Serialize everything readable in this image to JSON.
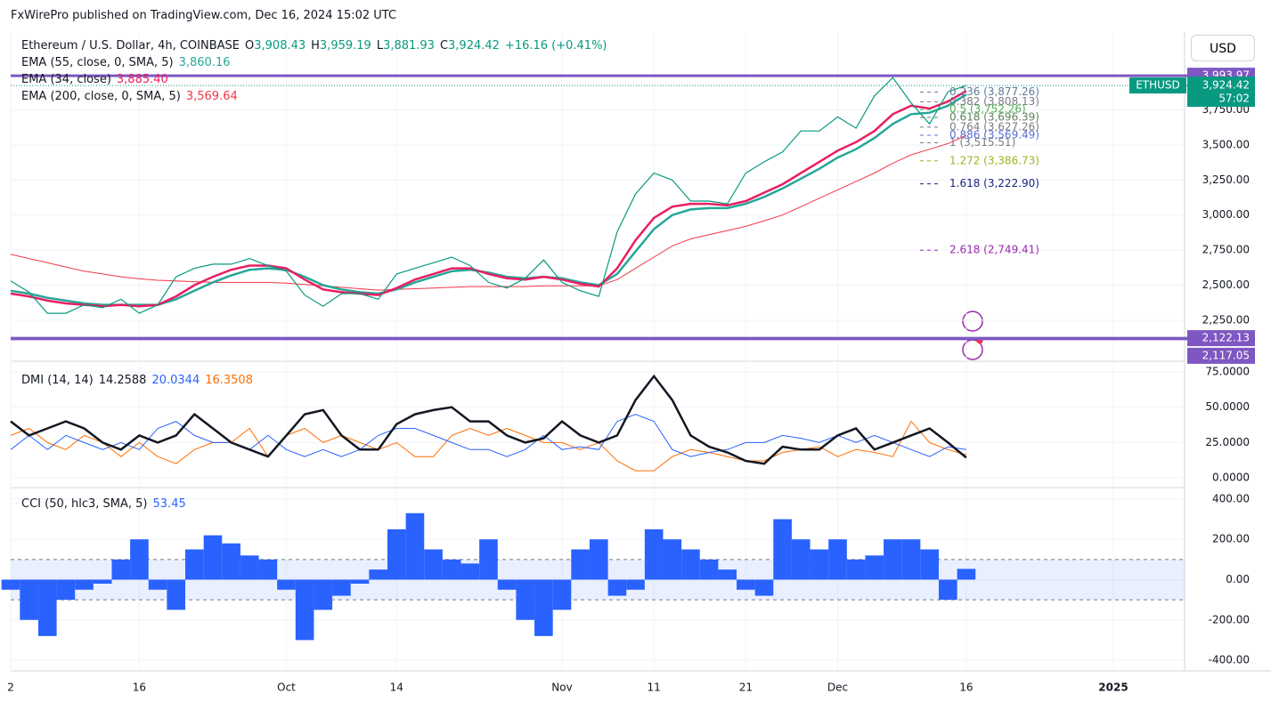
{
  "header": {
    "publisher": "FxWirePro published on TradingView.com, Dec 16, 2024 15:02 UTC",
    "currency": "USD"
  },
  "chart_data": [
    {
      "type": "line",
      "title": "Ethereum / U.S. Dollar, 4h, COINBASE",
      "ohlc": [
        [
          "O",
          "3,908.43"
        ],
        [
          "H",
          "3,959.19"
        ],
        [
          "L",
          "3,881.93"
        ],
        [
          "C",
          "3,924.42"
        ]
      ],
      "change": "+16.16 (+0.41%)",
      "categories": [
        "2",
        null,
        null,
        null,
        null,
        null,
        null,
        "16",
        null,
        null,
        null,
        null,
        null,
        null,
        null,
        "Oct",
        null,
        null,
        null,
        null,
        null,
        "14",
        null,
        null,
        null,
        null,
        null,
        null,
        null,
        null,
        "Nov",
        null,
        null,
        null,
        null,
        "11",
        null,
        null,
        null,
        null,
        "21",
        null,
        null,
        null,
        null,
        "Dec",
        null,
        null,
        null,
        null,
        null,
        null,
        "16",
        null,
        null,
        null,
        null,
        null,
        null,
        null,
        "2025"
      ],
      "ylim": [
        1964,
        4293
      ],
      "yticks": [
        {
          "value": 2250,
          "label": "2,250.00"
        },
        {
          "value": 2500,
          "label": "2,500.00"
        },
        {
          "value": 2750,
          "label": "2,750.00"
        },
        {
          "value": 3000,
          "label": "3,000.00"
        },
        {
          "value": 3250,
          "label": "3,250.00"
        },
        {
          "value": 3500,
          "label": "3,500.00"
        },
        {
          "value": 3750,
          "label": "3,750.00"
        }
      ],
      "grid": true,
      "series": [
        {
          "name": "ETHUSD",
          "color": "#089981",
          "value_label": "3,924.42",
          "countdown": "57:02",
          "values": [
            2530,
            2450,
            2300,
            2300,
            2360,
            2340,
            2400,
            2300,
            2360,
            2560,
            2620,
            2650,
            2650,
            2690,
            2640,
            2600,
            2430,
            2350,
            2440,
            2440,
            2400,
            2580,
            2620,
            2660,
            2700,
            2640,
            2520,
            2480,
            2550,
            2680,
            2520,
            2460,
            2420,
            2880,
            3150,
            3300,
            3250,
            3100,
            3100,
            3080,
            3300,
            3380,
            3450,
            3600,
            3600,
            3700,
            3620,
            3850,
            3980,
            3800,
            3650,
            3880,
            3924.42,
            null,
            null,
            null,
            null,
            null,
            null,
            null,
            null
          ]
        },
        {
          "name": "EMA (55, close, 0, SMA, 5)",
          "color": "#26a69a",
          "value_label": "3,860.16",
          "values": [
            2460,
            2440,
            2410,
            2390,
            2370,
            2360,
            2360,
            2360,
            2360,
            2400,
            2460,
            2520,
            2570,
            2610,
            2620,
            2610,
            2560,
            2500,
            2470,
            2450,
            2440,
            2470,
            2520,
            2560,
            2600,
            2610,
            2590,
            2560,
            2550,
            2560,
            2550,
            2520,
            2500,
            2580,
            2740,
            2900,
            3000,
            3040,
            3050,
            3050,
            3080,
            3130,
            3190,
            3260,
            3330,
            3410,
            3470,
            3550,
            3650,
            3720,
            3730,
            3780,
            3860.16,
            null,
            null,
            null,
            null,
            null,
            null,
            null,
            null
          ]
        },
        {
          "name": "EMA (34, close)",
          "color": "#e91e63",
          "value_label": "3,885.40",
          "values": [
            2440,
            2420,
            2390,
            2370,
            2360,
            2350,
            2360,
            2350,
            2360,
            2420,
            2500,
            2560,
            2610,
            2640,
            2640,
            2620,
            2540,
            2470,
            2450,
            2440,
            2430,
            2480,
            2540,
            2580,
            2620,
            2620,
            2580,
            2550,
            2540,
            2560,
            2540,
            2510,
            2490,
            2620,
            2820,
            2980,
            3060,
            3080,
            3080,
            3070,
            3100,
            3160,
            3220,
            3300,
            3380,
            3460,
            3520,
            3600,
            3720,
            3780,
            3760,
            3810,
            3885.4,
            null,
            null,
            null,
            null,
            null,
            null,
            null,
            null
          ]
        },
        {
          "name": "EMA (200, close, 0, SMA, 5)",
          "color": "#f23645",
          "value_label": "3,569.64",
          "values": [
            2720,
            2690,
            2660,
            2630,
            2600,
            2580,
            2560,
            2545,
            2535,
            2530,
            2525,
            2520,
            2520,
            2520,
            2520,
            2515,
            2505,
            2495,
            2485,
            2475,
            2465,
            2470,
            2475,
            2480,
            2485,
            2490,
            2490,
            2490,
            2490,
            2495,
            2495,
            2495,
            2495,
            2540,
            2620,
            2700,
            2780,
            2830,
            2860,
            2890,
            2920,
            2960,
            3000,
            3060,
            3120,
            3180,
            3240,
            3300,
            3370,
            3430,
            3470,
            3510,
            3569.64,
            null,
            null,
            null,
            null,
            null,
            null,
            null,
            null
          ]
        }
      ],
      "hline_color": "#7e57c2",
      "hlines": [
        {
          "value": 3993.97,
          "label": "3,993.97"
        },
        {
          "value": 2122.13,
          "label": "2,122.13"
        },
        {
          "value": 2117.05,
          "label": "2,117.05"
        }
      ],
      "fib": [
        {
          "value": 3877.26,
          "label": "0.236 (3,877.26)",
          "color": "#5d7c99"
        },
        {
          "value": 3808.13,
          "label": "0.382 (3,808.13)",
          "color": "#787b86"
        },
        {
          "value": 3752.26,
          "label": "0.5 (3,752.26)",
          "color": "#4caf50"
        },
        {
          "value": 3696.39,
          "label": "0.618 (3,696.39)",
          "color": "#5f7f5f"
        },
        {
          "value": 3627.26,
          "label": "0.764 (3,627.26)",
          "color": "#787b86"
        },
        {
          "value": 3569.49,
          "label": "0.886 (3,569.49)",
          "color": "#5b6ed6"
        },
        {
          "value": 3515.51,
          "label": "1 (3,515.51)",
          "color": "#787b86"
        },
        {
          "value": 3386.73,
          "label": "1.272 (3,386.73)",
          "color": "#9cb51f"
        },
        {
          "value": 3222.9,
          "label": "1.618 (3,222.90)",
          "color": "#1a237e"
        },
        {
          "value": 2749.41,
          "label": "2.618 (2,749.41)",
          "color": "#9c27b0"
        }
      ]
    },
    {
      "type": "line",
      "title": "DMI (14, 14)",
      "ylim": [
        -6.9,
        81.3
      ],
      "yticks": [
        {
          "value": 0,
          "label": "0.0000"
        },
        {
          "value": 25,
          "label": "25.0000"
        },
        {
          "value": 50,
          "label": "50.0000"
        },
        {
          "value": 75,
          "label": "75.0000"
        }
      ],
      "series": [
        {
          "color": "#131722",
          "value_label": "14.2588",
          "values": [
            40,
            30,
            35,
            40,
            35,
            25,
            20,
            30,
            25,
            30,
            45,
            35,
            25,
            20,
            15,
            30,
            45,
            48,
            30,
            20,
            20,
            38,
            45,
            48,
            50,
            40,
            40,
            30,
            25,
            28,
            40,
            30,
            25,
            30,
            55,
            72,
            55,
            30,
            22,
            18,
            12,
            10,
            22,
            20,
            20,
            30,
            35,
            20,
            25,
            30,
            35,
            25,
            14.2588,
            null,
            null,
            null,
            null,
            null,
            null,
            null,
            null
          ]
        },
        {
          "color": "#2962ff",
          "value_label": "20.0344",
          "values": [
            20,
            30,
            20,
            30,
            25,
            20,
            25,
            20,
            35,
            40,
            30,
            25,
            25,
            20,
            30,
            20,
            15,
            20,
            15,
            20,
            30,
            35,
            35,
            30,
            25,
            20,
            20,
            15,
            20,
            30,
            20,
            22,
            20,
            40,
            45,
            40,
            20,
            15,
            18,
            20,
            25,
            25,
            30,
            28,
            25,
            30,
            25,
            30,
            25,
            20,
            15,
            22,
            20.0344,
            null,
            null,
            null,
            null,
            null,
            null,
            null,
            null
          ]
        },
        {
          "color": "#ff6d00",
          "value_label": "16.3508",
          "values": [
            30,
            35,
            25,
            20,
            30,
            25,
            15,
            25,
            15,
            10,
            20,
            25,
            25,
            35,
            15,
            30,
            35,
            25,
            30,
            25,
            20,
            25,
            15,
            15,
            30,
            35,
            30,
            35,
            30,
            25,
            25,
            20,
            25,
            12,
            5,
            5,
            15,
            20,
            18,
            15,
            12,
            12,
            18,
            20,
            22,
            15,
            20,
            18,
            15,
            40,
            25,
            20,
            16.3508,
            null,
            null,
            null,
            null,
            null,
            null,
            null,
            null
          ]
        }
      ]
    },
    {
      "type": "bar",
      "title": "CCI (50, hlc3, SMA, 5)",
      "color": "#2962ff",
      "value_label": "53.45",
      "band": [
        -100,
        100
      ],
      "ylim": [
        -444,
        457
      ],
      "yticks": [
        {
          "value": -400,
          "label": "-400.00"
        },
        {
          "value": -200,
          "label": "-200.00"
        },
        {
          "value": 0,
          "label": "0.00"
        },
        {
          "value": 200,
          "label": "200.00"
        },
        {
          "value": 400,
          "label": "400.00"
        }
      ],
      "values": [
        -50,
        -200,
        -280,
        -100,
        -50,
        -20,
        100,
        200,
        -50,
        -150,
        150,
        220,
        180,
        120,
        100,
        -50,
        -300,
        -150,
        -80,
        -20,
        50,
        250,
        330,
        150,
        100,
        80,
        200,
        -50,
        -200,
        -280,
        -150,
        150,
        200,
        -80,
        -50,
        250,
        200,
        150,
        100,
        50,
        -50,
        -80,
        300,
        200,
        150,
        200,
        100,
        120,
        200,
        200,
        150,
        -100,
        53.45,
        null,
        null,
        null,
        null,
        null,
        null,
        null,
        null
      ]
    }
  ]
}
